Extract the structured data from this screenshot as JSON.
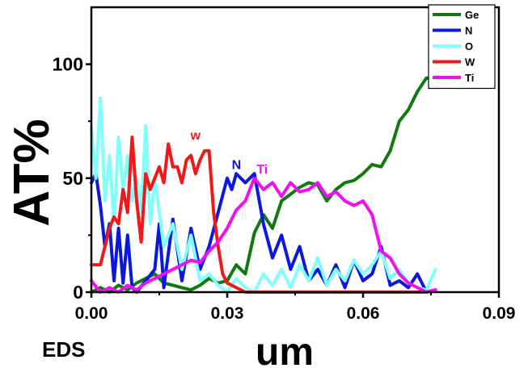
{
  "caption": "EDS",
  "chart_data": {
    "type": "line",
    "xlabel": "um",
    "ylabel": "AT%",
    "xlim": [
      0,
      0.09
    ],
    "ylim": [
      0,
      125
    ],
    "xticks": [
      0,
      0.03,
      0.06,
      0.09
    ],
    "xtick_labels": [
      "0.00",
      "0.03",
      "0.06",
      "0.09"
    ],
    "yticks": [
      0,
      50,
      100
    ],
    "ytick_labels": [
      "0",
      "50",
      "100"
    ],
    "legend_position": "top-right",
    "series": [
      {
        "name": "Ge",
        "color": "#107a10",
        "x": [
          0,
          0.002,
          0.004,
          0.006,
          0.008,
          0.01,
          0.012,
          0.014,
          0.016,
          0.018,
          0.02,
          0.022,
          0.024,
          0.026,
          0.028,
          0.03,
          0.032,
          0.034,
          0.036,
          0.038,
          0.04,
          0.042,
          0.044,
          0.046,
          0.048,
          0.05,
          0.052,
          0.054,
          0.056,
          0.058,
          0.06,
          0.062,
          0.064,
          0.066,
          0.068,
          0.07,
          0.072,
          0.074,
          0.076
        ],
        "y": [
          0,
          2,
          0,
          3,
          1,
          4,
          6,
          8,
          4,
          3,
          2,
          1,
          3,
          6,
          4,
          5,
          12,
          8,
          26,
          34,
          28,
          40,
          43,
          46,
          48,
          47,
          40,
          45,
          48,
          49,
          52,
          56,
          55,
          62,
          75,
          80,
          88,
          94,
          93
        ]
      },
      {
        "name": "N",
        "color": "#0a18e0",
        "x": [
          0,
          0.001,
          0.002,
          0.003,
          0.004,
          0.005,
          0.006,
          0.007,
          0.008,
          0.009,
          0.01,
          0.012,
          0.014,
          0.015,
          0.016,
          0.018,
          0.02,
          0.022,
          0.024,
          0.026,
          0.028,
          0.03,
          0.031,
          0.032,
          0.034,
          0.036,
          0.038,
          0.04,
          0.042,
          0.044,
          0.046,
          0.048,
          0.05,
          0.052,
          0.054,
          0.056,
          0.058,
          0.06,
          0.062,
          0.064,
          0.066,
          0.068,
          0.07,
          0.072,
          0.074,
          0.076
        ],
        "y": [
          48,
          52,
          38,
          20,
          30,
          5,
          28,
          4,
          25,
          2,
          0,
          5,
          10,
          30,
          2,
          32,
          5,
          28,
          10,
          20,
          35,
          50,
          45,
          52,
          48,
          52,
          30,
          15,
          25,
          10,
          20,
          5,
          10,
          3,
          12,
          2,
          14,
          5,
          8,
          20,
          3,
          5,
          2,
          8,
          0,
          1
        ]
      },
      {
        "name": "O",
        "color": "#80ffff",
        "x": [
          0,
          0.001,
          0.002,
          0.003,
          0.004,
          0.005,
          0.006,
          0.007,
          0.008,
          0.009,
          0.01,
          0.011,
          0.012,
          0.013,
          0.014,
          0.016,
          0.018,
          0.02,
          0.022,
          0.024,
          0.026,
          0.028,
          0.03,
          0.032,
          0.034,
          0.036,
          0.038,
          0.04,
          0.042,
          0.044,
          0.046,
          0.048,
          0.05,
          0.052,
          0.054,
          0.056,
          0.058,
          0.06,
          0.062,
          0.064,
          0.066,
          0.068,
          0.07,
          0.072,
          0.074,
          0.076
        ],
        "y": [
          72,
          50,
          85,
          40,
          60,
          30,
          68,
          45,
          60,
          40,
          50,
          35,
          73,
          30,
          50,
          20,
          30,
          10,
          25,
          5,
          8,
          3,
          0,
          6,
          2,
          0,
          8,
          3,
          10,
          2,
          12,
          5,
          15,
          3,
          10,
          5,
          14,
          8,
          12,
          18,
          6,
          10,
          4,
          2,
          1,
          10
        ]
      },
      {
        "name": "W",
        "color": "#f01818",
        "x": [
          0,
          0.002,
          0.003,
          0.004,
          0.005,
          0.006,
          0.007,
          0.008,
          0.009,
          0.01,
          0.011,
          0.012,
          0.013,
          0.014,
          0.015,
          0.016,
          0.017,
          0.018,
          0.019,
          0.02,
          0.021,
          0.022,
          0.023,
          0.024,
          0.025,
          0.026,
          0.027,
          0.028,
          0.029,
          0.03,
          0.032,
          0.034,
          0.04,
          0.05,
          0.06,
          0.07,
          0.074
        ],
        "y": [
          12,
          12,
          20,
          28,
          33,
          30,
          45,
          35,
          68,
          40,
          22,
          52,
          45,
          50,
          55,
          48,
          65,
          55,
          55,
          48,
          58,
          60,
          52,
          58,
          62,
          62,
          35,
          20,
          8,
          4,
          2,
          0,
          0,
          0,
          0,
          0,
          0
        ]
      },
      {
        "name": "Ti",
        "color": "#f010f0",
        "x": [
          0,
          0.002,
          0.004,
          0.006,
          0.008,
          0.01,
          0.012,
          0.014,
          0.016,
          0.018,
          0.02,
          0.022,
          0.024,
          0.026,
          0.028,
          0.03,
          0.032,
          0.034,
          0.036,
          0.038,
          0.04,
          0.042,
          0.044,
          0.046,
          0.048,
          0.05,
          0.052,
          0.054,
          0.056,
          0.058,
          0.06,
          0.062,
          0.064,
          0.066,
          0.068,
          0.07,
          0.072,
          0.074,
          0.076
        ],
        "y": [
          5,
          0,
          2,
          0,
          3,
          1,
          4,
          6,
          8,
          10,
          12,
          14,
          13,
          18,
          22,
          28,
          36,
          40,
          50,
          45,
          48,
          42,
          48,
          44,
          45,
          48,
          42,
          44,
          40,
          38,
          40,
          34,
          18,
          15,
          8,
          4,
          2,
          0,
          1
        ]
      }
    ],
    "annotations": [
      {
        "text": "w",
        "x": 0.0219,
        "y": 67,
        "color": "#f01818"
      },
      {
        "text": "N",
        "x": 0.031,
        "y": 54,
        "color": "#0a18e0"
      },
      {
        "text": "Ti",
        "x": 0.0365,
        "y": 52,
        "color": "#f010f0"
      }
    ]
  }
}
